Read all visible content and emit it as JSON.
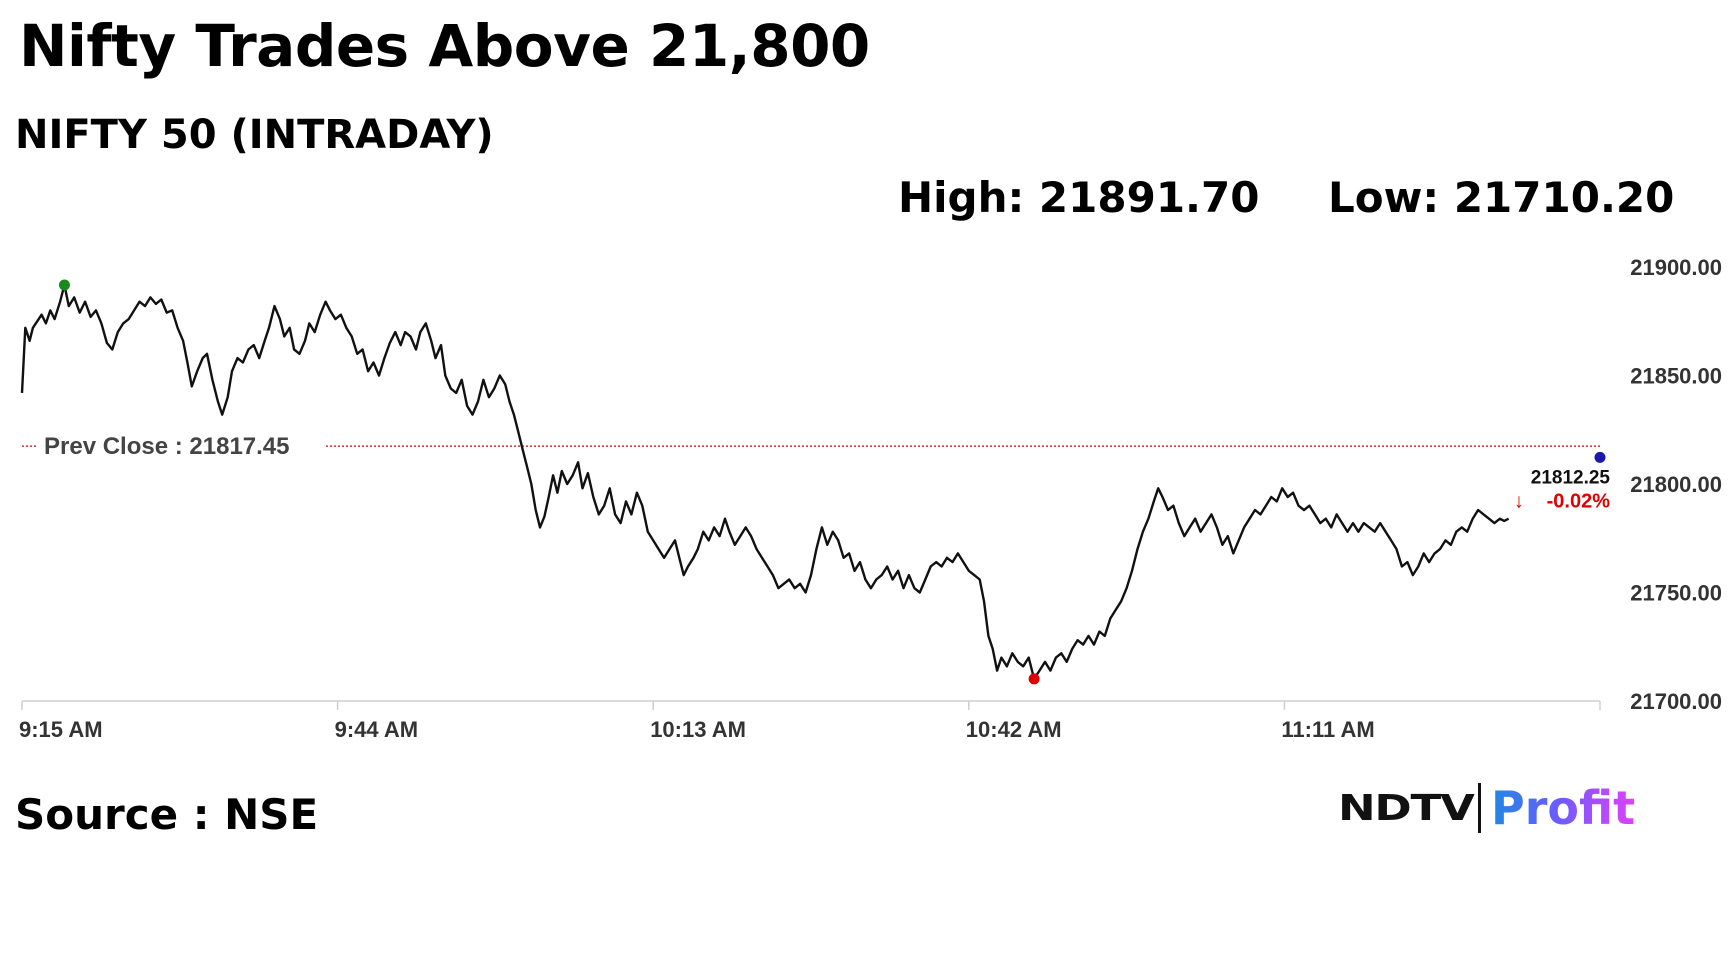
{
  "headline": "Nifty Trades Above 21,800",
  "subtitle": "NIFTY 50 (INTRADAY)",
  "stats": {
    "high": "High: 21891.70",
    "low": "Low: 21710.20"
  },
  "source": "Source : NSE",
  "logo": {
    "brand": "NDTV",
    "product": "Profit"
  },
  "chart_data": {
    "type": "line",
    "y_ticks": [
      "21900.00",
      "21850.00",
      "21800.00",
      "21750.00",
      "21700.00"
    ],
    "ylim": [
      21700,
      21900
    ],
    "x_tick_labels": [
      "9:15 AM",
      "9:44 AM",
      "10:13 AM",
      "10:42 AM",
      "11:11 AM"
    ],
    "x_tick_minutes": [
      0,
      29,
      58,
      87,
      116
    ],
    "xlim_minutes": [
      0,
      145
    ],
    "prev_close": {
      "label": "Prev Close : 21817.45",
      "value": 21817.45,
      "color": "#cc0000"
    },
    "last": {
      "value_label": "21812.25",
      "change_label": "-0.02%",
      "value": 21812.25,
      "minute": 145
    },
    "high_marker": {
      "minute": 3.9,
      "value": 21891.7,
      "color": "#1a8a1a"
    },
    "low_marker": {
      "minute": 93,
      "value": 21710.2,
      "color": "#e00000"
    },
    "last_marker_color": "#1a1aa6",
    "series": [
      {
        "points": [
          [
            0,
            21842
          ],
          [
            0.3,
            21872
          ],
          [
            0.7,
            21866
          ],
          [
            1,
            21872
          ],
          [
            1.4,
            21875
          ],
          [
            1.8,
            21878
          ],
          [
            2.2,
            21874
          ],
          [
            2.6,
            21880
          ],
          [
            3,
            21876
          ],
          [
            3.5,
            21884
          ],
          [
            3.9,
            21891.7
          ],
          [
            4.3,
            21882
          ],
          [
            4.8,
            21886
          ],
          [
            5.3,
            21879
          ],
          [
            5.8,
            21884
          ],
          [
            6.3,
            21877
          ],
          [
            6.8,
            21880
          ],
          [
            7.3,
            21874
          ],
          [
            7.8,
            21865
          ],
          [
            8.3,
            21862
          ],
          [
            8.8,
            21870
          ],
          [
            9.3,
            21874
          ],
          [
            9.8,
            21876
          ],
          [
            10.3,
            21880
          ],
          [
            10.8,
            21884
          ],
          [
            11.3,
            21882
          ],
          [
            11.8,
            21886
          ],
          [
            12.3,
            21883
          ],
          [
            12.8,
            21885
          ],
          [
            13.3,
            21879
          ],
          [
            13.8,
            21880
          ],
          [
            14.3,
            21872
          ],
          [
            14.8,
            21866
          ],
          [
            15.2,
            21856
          ],
          [
            15.6,
            21845
          ],
          [
            16.1,
            21852
          ],
          [
            16.6,
            21858
          ],
          [
            17,
            21860
          ],
          [
            17.5,
            21848
          ],
          [
            18,
            21838
          ],
          [
            18.4,
            21832
          ],
          [
            18.9,
            21840
          ],
          [
            19.3,
            21852
          ],
          [
            19.8,
            21858
          ],
          [
            20.3,
            21856
          ],
          [
            20.8,
            21862
          ],
          [
            21.3,
            21864
          ],
          [
            21.8,
            21858
          ],
          [
            22.3,
            21866
          ],
          [
            22.7,
            21872
          ],
          [
            23.2,
            21882
          ],
          [
            23.7,
            21876
          ],
          [
            24.1,
            21868
          ],
          [
            24.6,
            21872
          ],
          [
            25,
            21862
          ],
          [
            25.5,
            21860
          ],
          [
            26,
            21866
          ],
          [
            26.4,
            21874
          ],
          [
            26.9,
            21870
          ],
          [
            27.4,
            21878
          ],
          [
            27.9,
            21884
          ],
          [
            28.3,
            21880
          ],
          [
            28.8,
            21876
          ],
          [
            29.3,
            21878
          ],
          [
            29.8,
            21872
          ],
          [
            30.3,
            21868
          ],
          [
            30.8,
            21860
          ],
          [
            31.3,
            21862
          ],
          [
            31.8,
            21852
          ],
          [
            32.3,
            21856
          ],
          [
            32.8,
            21850
          ],
          [
            33.3,
            21858
          ],
          [
            33.8,
            21865
          ],
          [
            34.3,
            21870
          ],
          [
            34.8,
            21864
          ],
          [
            35.2,
            21870
          ],
          [
            35.7,
            21868
          ],
          [
            36.2,
            21862
          ],
          [
            36.6,
            21870
          ],
          [
            37.1,
            21874
          ],
          [
            37.6,
            21866
          ],
          [
            38,
            21858
          ],
          [
            38.5,
            21864
          ],
          [
            38.9,
            21850
          ],
          [
            39.4,
            21844
          ],
          [
            39.9,
            21842
          ],
          [
            40.4,
            21848
          ],
          [
            40.9,
            21836
          ],
          [
            41.4,
            21832
          ],
          [
            41.9,
            21838
          ],
          [
            42.4,
            21848
          ],
          [
            42.9,
            21840
          ],
          [
            43.4,
            21844
          ],
          [
            43.9,
            21850
          ],
          [
            44.4,
            21846
          ],
          [
            44.8,
            21838
          ],
          [
            45.2,
            21832
          ],
          [
            45.6,
            21824
          ],
          [
            46,
            21816
          ],
          [
            46.4,
            21808
          ],
          [
            46.8,
            21800
          ],
          [
            47.2,
            21788
          ],
          [
            47.6,
            21780
          ],
          [
            48,
            21785
          ],
          [
            48.4,
            21794
          ],
          [
            48.8,
            21804
          ],
          [
            49.2,
            21796
          ],
          [
            49.6,
            21806
          ],
          [
            50.1,
            21800
          ],
          [
            50.6,
            21804
          ],
          [
            51.1,
            21810
          ],
          [
            51.5,
            21798
          ],
          [
            52,
            21805
          ],
          [
            52.5,
            21794
          ],
          [
            53,
            21786
          ],
          [
            53.5,
            21790
          ],
          [
            54,
            21798
          ],
          [
            54.5,
            21786
          ],
          [
            55,
            21782
          ],
          [
            55.5,
            21792
          ],
          [
            56,
            21786
          ],
          [
            56.5,
            21796
          ],
          [
            57,
            21790
          ],
          [
            57.5,
            21778
          ],
          [
            58,
            21774
          ],
          [
            58.5,
            21770
          ],
          [
            59,
            21766
          ],
          [
            59.5,
            21770
          ],
          [
            60,
            21774
          ],
          [
            60.4,
            21766
          ],
          [
            60.8,
            21758
          ],
          [
            61.2,
            21762
          ],
          [
            61.7,
            21766
          ],
          [
            62.1,
            21770
          ],
          [
            62.6,
            21778
          ],
          [
            63.1,
            21774
          ],
          [
            63.6,
            21780
          ],
          [
            64.1,
            21776
          ],
          [
            64.6,
            21784
          ],
          [
            65,
            21778
          ],
          [
            65.5,
            21772
          ],
          [
            66,
            21776
          ],
          [
            66.5,
            21780
          ],
          [
            67,
            21776
          ],
          [
            67.5,
            21770
          ],
          [
            68,
            21766
          ],
          [
            68.5,
            21762
          ],
          [
            69,
            21758
          ],
          [
            69.5,
            21752
          ],
          [
            70,
            21754
          ],
          [
            70.5,
            21756
          ],
          [
            71,
            21752
          ],
          [
            71.5,
            21754
          ],
          [
            72,
            21750
          ],
          [
            72.5,
            21758
          ],
          [
            73,
            21770
          ],
          [
            73.5,
            21780
          ],
          [
            74,
            21772
          ],
          [
            74.5,
            21778
          ],
          [
            75,
            21774
          ],
          [
            75.5,
            21766
          ],
          [
            76,
            21768
          ],
          [
            76.5,
            21760
          ],
          [
            77,
            21764
          ],
          [
            77.5,
            21756
          ],
          [
            78,
            21752
          ],
          [
            78.5,
            21756
          ],
          [
            79,
            21758
          ],
          [
            79.5,
            21762
          ],
          [
            80,
            21756
          ],
          [
            80.5,
            21760
          ],
          [
            81,
            21752
          ],
          [
            81.5,
            21758
          ],
          [
            82,
            21752
          ],
          [
            82.5,
            21750
          ],
          [
            83,
            21756
          ],
          [
            83.5,
            21762
          ],
          [
            84,
            21764
          ],
          [
            84.5,
            21762
          ],
          [
            85,
            21766
          ],
          [
            85.5,
            21764
          ],
          [
            86,
            21768
          ],
          [
            86.5,
            21764
          ],
          [
            87,
            21760
          ],
          [
            87.5,
            21758
          ],
          [
            88,
            21756
          ],
          [
            88.4,
            21746
          ],
          [
            88.8,
            21730
          ],
          [
            89.2,
            21724
          ],
          [
            89.6,
            21714
          ],
          [
            90,
            21720
          ],
          [
            90.5,
            21716
          ],
          [
            91,
            21722
          ],
          [
            91.5,
            21718
          ],
          [
            92,
            21716
          ],
          [
            92.5,
            21720
          ],
          [
            93,
            21710.2
          ],
          [
            93.5,
            21714
          ],
          [
            94,
            21718
          ],
          [
            94.5,
            21714
          ],
          [
            95,
            21720
          ],
          [
            95.5,
            21722
          ],
          [
            96,
            21718
          ],
          [
            96.5,
            21724
          ],
          [
            97,
            21728
          ],
          [
            97.5,
            21726
          ],
          [
            98,
            21730
          ],
          [
            98.5,
            21726
          ],
          [
            99,
            21732
          ],
          [
            99.5,
            21730
          ],
          [
            100,
            21738
          ],
          [
            100.5,
            21742
          ],
          [
            101,
            21746
          ],
          [
            101.5,
            21752
          ],
          [
            102,
            21760
          ],
          [
            102.5,
            21770
          ],
          [
            103,
            21778
          ],
          [
            103.5,
            21784
          ],
          [
            104,
            21792
          ],
          [
            104.4,
            21798
          ],
          [
            104.8,
            21794
          ],
          [
            105.3,
            21788
          ],
          [
            105.8,
            21790
          ],
          [
            106.3,
            21782
          ],
          [
            106.8,
            21776
          ],
          [
            107.3,
            21780
          ],
          [
            107.8,
            21784
          ],
          [
            108.3,
            21778
          ],
          [
            108.8,
            21782
          ],
          [
            109.3,
            21786
          ],
          [
            109.8,
            21780
          ],
          [
            110.3,
            21772
          ],
          [
            110.8,
            21776
          ],
          [
            111.3,
            21768
          ],
          [
            111.8,
            21774
          ],
          [
            112.3,
            21780
          ],
          [
            112.8,
            21784
          ],
          [
            113.3,
            21788
          ],
          [
            113.8,
            21786
          ],
          [
            114.3,
            21790
          ],
          [
            114.8,
            21794
          ],
          [
            115.3,
            21792
          ],
          [
            115.8,
            21798
          ],
          [
            116.3,
            21794
          ],
          [
            116.8,
            21796
          ],
          [
            117.3,
            21790
          ],
          [
            117.8,
            21788
          ],
          [
            118.3,
            21790
          ],
          [
            118.8,
            21786
          ],
          [
            119.3,
            21782
          ],
          [
            119.8,
            21784
          ],
          [
            120.3,
            21780
          ],
          [
            120.8,
            21786
          ],
          [
            121.3,
            21782
          ],
          [
            121.8,
            21778
          ],
          [
            122.3,
            21782
          ],
          [
            122.8,
            21778
          ],
          [
            123.3,
            21782
          ],
          [
            123.8,
            21780
          ],
          [
            124.3,
            21778
          ],
          [
            124.8,
            21782
          ],
          [
            125.3,
            21778
          ],
          [
            125.8,
            21774
          ],
          [
            126.3,
            21770
          ],
          [
            126.8,
            21762
          ],
          [
            127.3,
            21764
          ],
          [
            127.8,
            21758
          ],
          [
            128.3,
            21762
          ],
          [
            128.8,
            21768
          ],
          [
            129.3,
            21764
          ],
          [
            129.8,
            21768
          ],
          [
            130.3,
            21770
          ],
          [
            130.8,
            21774
          ],
          [
            131.3,
            21772
          ],
          [
            131.8,
            21778
          ],
          [
            132.3,
            21780
          ],
          [
            132.8,
            21778
          ],
          [
            133.3,
            21784
          ],
          [
            133.8,
            21788
          ],
          [
            134.3,
            21786
          ],
          [
            134.8,
            21784
          ],
          [
            135.3,
            21782
          ],
          [
            135.8,
            21784
          ],
          [
            136.2,
            21783
          ],
          [
            136.6,
            21784
          ]
        ]
      }
    ]
  }
}
